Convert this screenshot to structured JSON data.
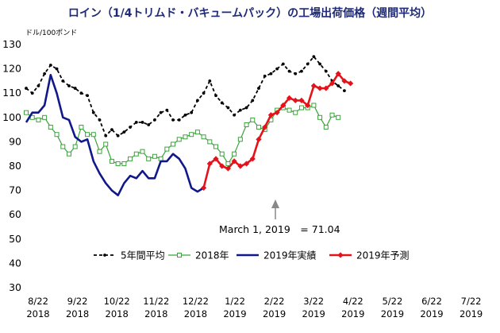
{
  "chart_data": {
    "type": "line",
    "title": "ロイン（1/4トリムド・バキュームパック）の工場出荷価格（週間平均）",
    "unit_label": "ドル/100ポンド",
    "ylim": [
      30,
      130
    ],
    "y_ticks": [
      "30",
      "40",
      "50",
      "60",
      "70",
      "80",
      "90",
      "100",
      "110",
      "120",
      "130"
    ],
    "x_ticks": [
      {
        "line1": "8/22",
        "line2": "2018"
      },
      {
        "line1": "9/22",
        "line2": "2018"
      },
      {
        "line1": "10/22",
        "line2": "2018"
      },
      {
        "line1": "11/22",
        "line2": "2018"
      },
      {
        "line1": "12/22",
        "line2": "2018"
      },
      {
        "line1": "1/22",
        "line2": "2019"
      },
      {
        "line1": "2/22",
        "line2": "2019"
      },
      {
        "line1": "3/22",
        "line2": "2019"
      },
      {
        "line1": "4/22",
        "line2": "2019"
      },
      {
        "line1": "5/22",
        "line2": "2019"
      },
      {
        "line1": "6/22",
        "line2": "2019"
      },
      {
        "line1": "7/22",
        "line2": "2019"
      }
    ],
    "grid": false,
    "legend_position": "bottom",
    "series": [
      {
        "name": "5年間平均",
        "color": "#000000",
        "values": [
          112,
          110,
          113,
          118,
          121.5,
          120,
          115,
          113,
          112,
          110,
          109,
          102,
          99,
          92.5,
          95,
          92.5,
          94,
          96,
          98,
          98,
          97,
          99,
          102,
          103,
          99,
          99,
          101,
          102,
          107,
          110,
          115,
          109,
          106,
          104,
          101,
          103,
          104,
          107,
          112,
          117,
          118,
          120,
          122,
          119,
          118,
          119,
          122,
          125,
          122,
          119,
          115,
          113,
          111
        ]
      },
      {
        "name": "2018年",
        "color": "#3aa33a",
        "values": [
          102,
          100,
          99,
          100,
          96,
          93,
          88,
          85,
          88,
          96,
          93,
          93,
          86,
          89,
          82,
          81,
          81,
          83,
          85,
          86,
          83,
          84,
          83,
          87,
          89,
          91,
          92,
          93,
          94,
          92,
          90,
          88,
          85,
          81,
          85,
          91,
          97,
          99,
          96,
          95,
          99,
          103,
          104,
          103,
          102,
          104,
          104,
          105,
          100,
          96,
          101,
          100
        ]
      },
      {
        "name": "2019年実績",
        "color": "#10188a",
        "values": [
          98,
          102,
          102,
          105,
          117.5,
          110,
          100,
          99,
          92,
          90,
          91,
          82,
          77,
          73,
          70,
          68,
          73,
          76,
          75,
          78,
          75,
          75,
          82,
          82,
          85,
          83,
          79,
          71,
          69.5,
          71.04
        ]
      },
      {
        "name": "2019年予測",
        "color": "#e5121b",
        "values": [
          71.04,
          81,
          83,
          80,
          79,
          82,
          80,
          81,
          83,
          91,
          96,
          101,
          102,
          105,
          108,
          107,
          107,
          105,
          113,
          112,
          112,
          114,
          118,
          115,
          114
        ]
      }
    ],
    "annotation": "March 1, 2019　= 71.04"
  }
}
